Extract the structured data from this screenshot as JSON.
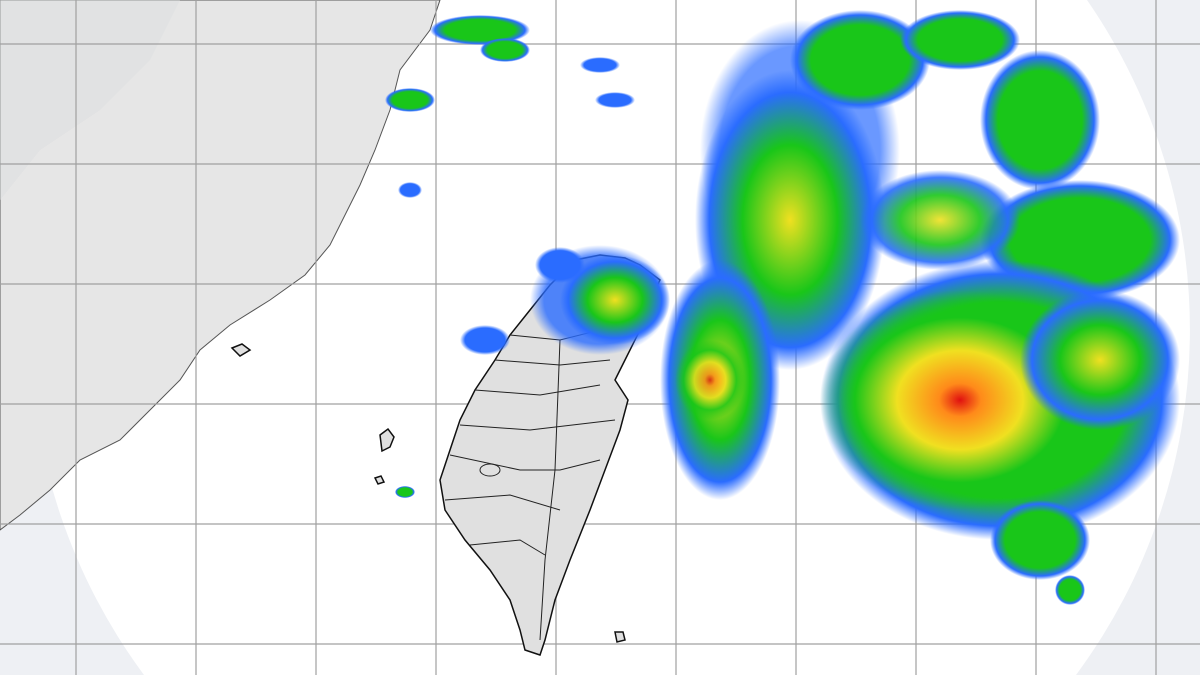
{
  "map": {
    "type": "weather radar composite",
    "colors": {
      "outside_radar": "#eef0f4",
      "land_mainland": "#e6e6e6",
      "land_taiwan": "#e0e0e0",
      "grid": "#9a9a9a",
      "echo_light": "#1e5bff",
      "echo_moderate": "#19c619",
      "echo_heavy": "#f0e020",
      "echo_intense": "#ff7a1a",
      "echo_extreme": "#e01010"
    }
  }
}
